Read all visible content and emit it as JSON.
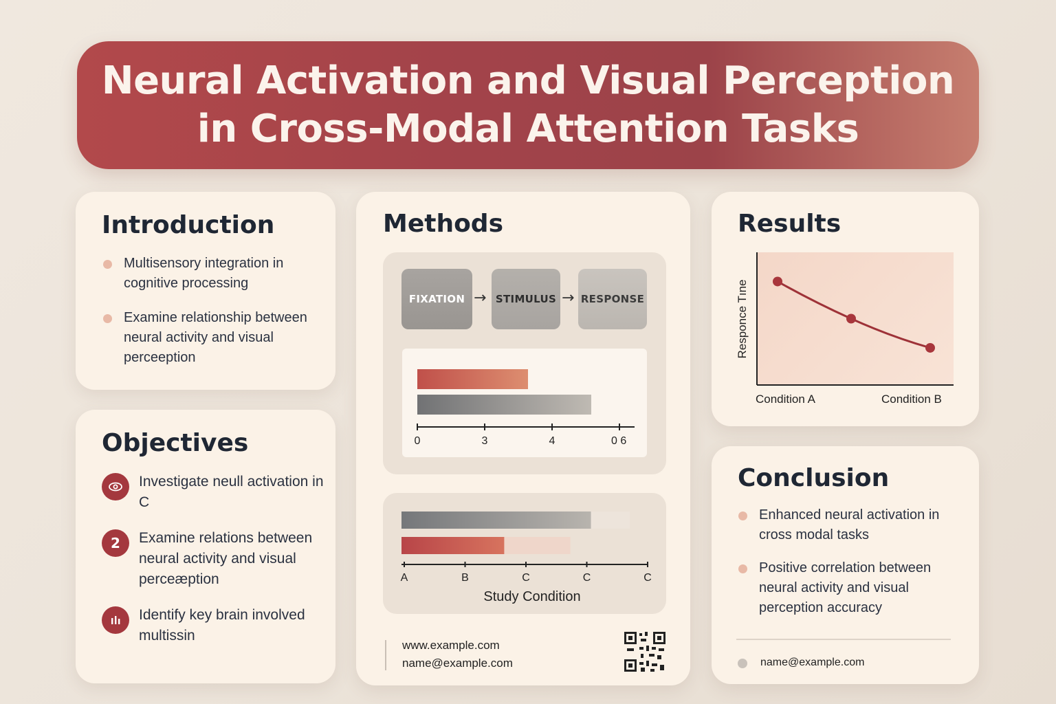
{
  "title": {
    "line1": "Neural Activation and Visual Perception",
    "line2": "in Cross-Modal Attention Tasks"
  },
  "introduction": {
    "title": "Introduction",
    "bullets": [
      "Multisensory integration in cognitive processing",
      "Examine relationship between neural activity and visual perceeption"
    ]
  },
  "objectives": {
    "title": "Objectives",
    "items": [
      {
        "icon": "eye-icon",
        "badge": "",
        "text": "Investigate neull activation in C"
      },
      {
        "icon": "number-badge-icon",
        "badge": "2",
        "text": "Examine relations between neural activity and visual perceæption"
      },
      {
        "icon": "bar-chart-icon",
        "badge": "",
        "text": "Identify key brain involved multissin"
      }
    ]
  },
  "methods": {
    "title": "Methods",
    "steps": [
      "FIXATION",
      "STIMULUS",
      "RESPONSE"
    ],
    "arrow": "→",
    "footer": {
      "url": "www.example.com",
      "email": "name@example.com"
    }
  },
  "results": {
    "title": "Results",
    "ylabel": "Responce Tıne",
    "x_labels": [
      "Condition A",
      "Condition B"
    ]
  },
  "conclusion": {
    "title": "Conclusion",
    "bullets": [
      "Enhanced neural activation in cross modal tasks",
      "Positive correlation between neural activity and visual perception accuracy"
    ],
    "email": "name@example.com"
  },
  "colors": {
    "accent": "#a4383e",
    "bar_red": "#c4574c",
    "bar_gray": "#7c7d7e"
  },
  "chart_data": [
    {
      "type": "bar",
      "orientation": "horizontal",
      "series": [
        {
          "values": [
            3.5
          ]
        },
        {
          "values": [
            5.5
          ]
        }
      ],
      "ticks": [
        "0",
        "3",
        "4",
        "0 6"
      ],
      "xlim": [
        0,
        6
      ]
    },
    {
      "type": "bar",
      "orientation": "horizontal",
      "series": [
        {
          "values": [
            0.83
          ],
          "track": 1.0
        },
        {
          "values": [
            0.45
          ],
          "track": 0.74
        }
      ],
      "ticks": [
        "A",
        "B",
        "C",
        "C",
        "C"
      ],
      "xlabel": "Study Condition"
    },
    {
      "type": "line",
      "x": [
        0,
        1,
        2
      ],
      "y": [
        0.78,
        0.5,
        0.28
      ],
      "x_labels": [
        "Condition A",
        "Condition B"
      ],
      "ylabel": "Responce Tıne"
    }
  ]
}
